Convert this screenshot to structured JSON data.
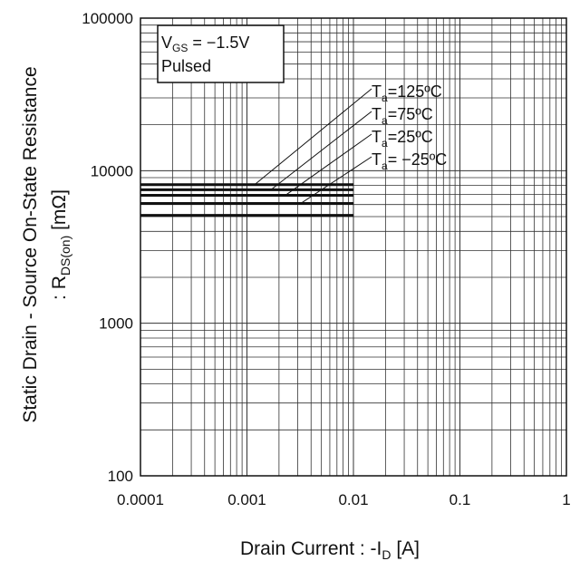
{
  "chart_data": {
    "type": "line",
    "x_scale": "log",
    "y_scale": "log",
    "xlim": [
      0.0001,
      1
    ],
    "ylim": [
      100,
      100000
    ],
    "grid": true,
    "x_ticks": [
      "0.0001",
      "0.001",
      "0.01",
      "0.1",
      "1"
    ],
    "y_ticks": [
      "100",
      "1000",
      "10000",
      "100000"
    ],
    "xlabel": {
      "prefix": "Drain Current : -I",
      "sub": "D",
      "suffix": " [A]"
    },
    "ylabel": {
      "line1": "Static Drain - Source On-State Resistance",
      "line2_prefix": ": R",
      "line2_sub": "DS(on)",
      "line2_suffix": " [mΩ]"
    },
    "condition": {
      "v_prefix": "V",
      "v_sub": "GS",
      "v_value": " = −1.5V",
      "mode": "Pulsed"
    },
    "series": [
      {
        "name": "125ºC",
        "label_prefix": "T",
        "label_sub": "a",
        "label_value": "=125ºC",
        "x": [
          0.0001,
          0.01
        ],
        "y": [
          8100,
          8100
        ],
        "leader_x": 0.00118
      },
      {
        "name": "75ºC",
        "label_prefix": "T",
        "label_sub": "a",
        "label_value": "=75ºC",
        "x": [
          0.0001,
          0.01
        ],
        "y": [
          7500,
          7500
        ],
        "leader_x": 0.00168
      },
      {
        "name": "25ºC",
        "label_prefix": "T",
        "label_sub": "a",
        "label_value": "=25ºC",
        "x": [
          0.0001,
          0.01
        ],
        "y": [
          6900,
          6900
        ],
        "leader_x": 0.0023
      },
      {
        "name": "−25ºC",
        "label_prefix": "T",
        "label_sub": "a",
        "label_value": "= −25ºC",
        "x": [
          0.0001,
          0.01
        ],
        "y": [
          6100,
          6100
        ],
        "leader_x": 0.0032
      },
      {
        "name": "",
        "label_prefix": "",
        "label_sub": "",
        "label_value": "",
        "x": [
          0.0001,
          0.01
        ],
        "y": [
          5100,
          5100
        ]
      }
    ]
  }
}
